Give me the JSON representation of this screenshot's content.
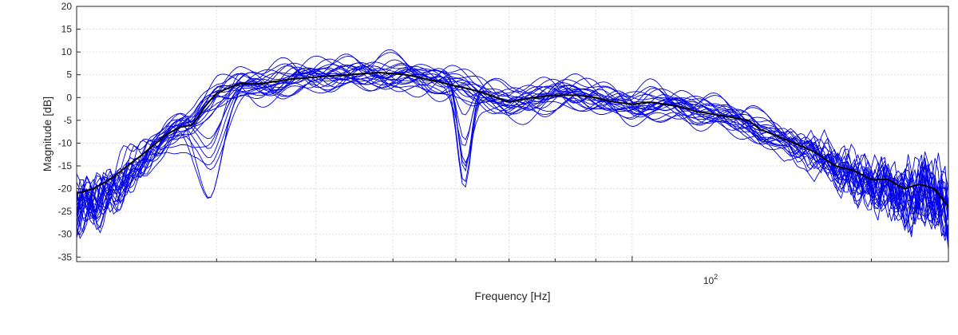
{
  "chart_data": {
    "type": "line",
    "title": "",
    "xlabel": "Frequency [Hz]",
    "ylabel": "Magnitude [dB]",
    "xscale": "log",
    "xlim": [
      20,
      250
    ],
    "ylim": [
      -36,
      20
    ],
    "x_tick_label": "10",
    "x_tick_label_exponent": "2",
    "x_tick_label_value": 100,
    "y_ticks": [
      20,
      15,
      10,
      5,
      0,
      -5,
      -10,
      -15,
      -20,
      -25,
      -30,
      -35
    ],
    "grid": true,
    "legend": "none",
    "colors": {
      "individual": "#0000e6",
      "mean": "#000000",
      "grid": "#d9d9d9",
      "axis": "#262626"
    },
    "mean_curve": {
      "x": [
        20,
        21,
        22,
        24,
        26,
        27,
        28,
        29,
        30,
        32,
        34,
        37,
        40,
        44,
        48,
        52,
        57,
        60,
        62,
        65,
        70,
        75,
        80,
        85,
        90,
        95,
        100,
        105,
        110,
        115,
        120,
        125,
        130,
        135,
        140,
        145,
        150,
        160,
        170,
        180,
        190,
        200,
        210,
        220,
        230,
        240,
        250
      ],
      "y": [
        -21,
        -20,
        -18,
        -13,
        -8,
        -6.5,
        -6,
        -2,
        1,
        3,
        3,
        4,
        4.5,
        5,
        5.5,
        5,
        3.5,
        2.5,
        2,
        1,
        -1,
        0,
        0.5,
        0.5,
        0,
        -1,
        -1.5,
        -1,
        -1.5,
        -2,
        -3,
        -3.5,
        -4,
        -4.5,
        -5,
        -7,
        -8,
        -10,
        -12,
        -15,
        -16,
        -18,
        -18,
        -20,
        -19,
        -20,
        -24
      ]
    },
    "individual_curve_count": 25,
    "notches": [
      {
        "x": 29.5,
        "depth_db": 23.5
      },
      {
        "x": 61.5,
        "depth_db": 23
      }
    ]
  }
}
